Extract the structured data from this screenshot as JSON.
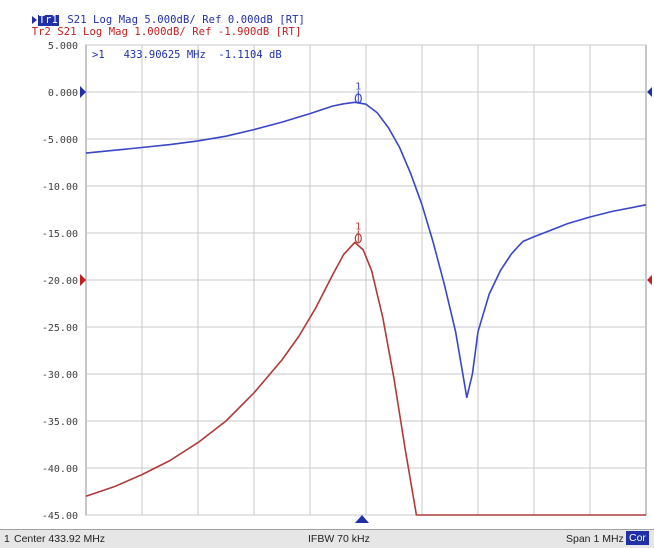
{
  "traces": [
    {
      "id": "Tr1",
      "label": "S21 Log Mag 5.000dB/ Ref 0.000dB [RT]",
      "color": "#1f2fa8",
      "active": true
    },
    {
      "id": "Tr2",
      "label": "S21 Log Mag 1.000dB/ Ref -1.900dB [RT]",
      "color": "#c02020",
      "active": false
    }
  ],
  "marker_readout": ">1   433.90625 MHz  -1.1104 dB",
  "status": {
    "channel": "1",
    "center": "Center 433.92 MHz",
    "ifbw": "IFBW 70 kHz",
    "span": "Span 1 MHz",
    "cor": "Cor"
  },
  "chart_data": {
    "type": "line",
    "title": "",
    "xlabel": "",
    "ylabel": "",
    "xlim": [
      433.42,
      434.42
    ],
    "ylim": [
      -45,
      5
    ],
    "grid": true,
    "yticks": [
      {
        "value": 5,
        "label": "5.000"
      },
      {
        "value": 0,
        "label": "0.000"
      },
      {
        "value": -5,
        "label": "-5.000"
      },
      {
        "value": -10,
        "label": "-10.00"
      },
      {
        "value": -15,
        "label": "-15.00"
      },
      {
        "value": -20,
        "label": "-20.00"
      },
      {
        "value": -25,
        "label": "-25.00"
      },
      {
        "value": -30,
        "label": "-30.00"
      },
      {
        "value": -35,
        "label": "-35.00"
      },
      {
        "value": -40,
        "label": "-40.00"
      },
      {
        "value": -45,
        "label": "-45.00"
      }
    ],
    "ref_markers": [
      {
        "y": 0,
        "color": "#1f2fa8"
      },
      {
        "y": -20,
        "color": "#c02020"
      }
    ],
    "series": [
      {
        "color": "#3a46c8",
        "points": [
          [
            433.42,
            -6.5
          ],
          [
            433.47,
            -6.2
          ],
          [
            433.52,
            -5.9
          ],
          [
            433.57,
            -5.6
          ],
          [
            433.62,
            -5.2
          ],
          [
            433.67,
            -4.7
          ],
          [
            433.72,
            -4.0
          ],
          [
            433.77,
            -3.2
          ],
          [
            433.82,
            -2.3
          ],
          [
            433.86,
            -1.5
          ],
          [
            433.88,
            -1.25
          ],
          [
            433.9,
            -1.1
          ],
          [
            433.92,
            -1.3
          ],
          [
            433.94,
            -2.2
          ],
          [
            433.96,
            -3.8
          ],
          [
            433.98,
            -5.9
          ],
          [
            434.0,
            -8.7
          ],
          [
            434.02,
            -12.0
          ],
          [
            434.04,
            -16.0
          ],
          [
            434.06,
            -20.5
          ],
          [
            434.08,
            -25.5
          ],
          [
            434.09,
            -29.0
          ],
          [
            434.1,
            -32.5
          ],
          [
            434.11,
            -30.0
          ],
          [
            434.12,
            -25.5
          ],
          [
            434.14,
            -21.5
          ],
          [
            434.16,
            -19.0
          ],
          [
            434.18,
            -17.2
          ],
          [
            434.2,
            -15.9
          ],
          [
            434.22,
            -15.4
          ],
          [
            434.25,
            -14.7
          ],
          [
            434.28,
            -14.0
          ],
          [
            434.32,
            -13.3
          ],
          [
            434.36,
            -12.7
          ],
          [
            434.42,
            -12.0
          ]
        ],
        "marker": {
          "x": 433.90625,
          "y": -1.1104,
          "label": "1"
        }
      },
      {
        "color": "#b03a3a",
        "points": [
          [
            433.42,
            -43.0
          ],
          [
            433.47,
            -42.0
          ],
          [
            433.52,
            -40.7
          ],
          [
            433.57,
            -39.2
          ],
          [
            433.62,
            -37.3
          ],
          [
            433.67,
            -35.0
          ],
          [
            433.72,
            -32.0
          ],
          [
            433.77,
            -28.5
          ],
          [
            433.8,
            -26.0
          ],
          [
            433.83,
            -23.0
          ],
          [
            433.86,
            -19.5
          ],
          [
            433.88,
            -17.3
          ],
          [
            433.9,
            -16.0
          ],
          [
            433.915,
            -16.8
          ],
          [
            433.93,
            -19.0
          ],
          [
            433.95,
            -24.0
          ],
          [
            433.97,
            -30.5
          ],
          [
            433.99,
            -38.0
          ],
          [
            434.0,
            -41.5
          ],
          [
            434.01,
            -45.0
          ],
          [
            434.42,
            -45.0
          ]
        ],
        "marker": {
          "x": 433.90625,
          "y": -16.0,
          "label": "1"
        }
      }
    ]
  }
}
